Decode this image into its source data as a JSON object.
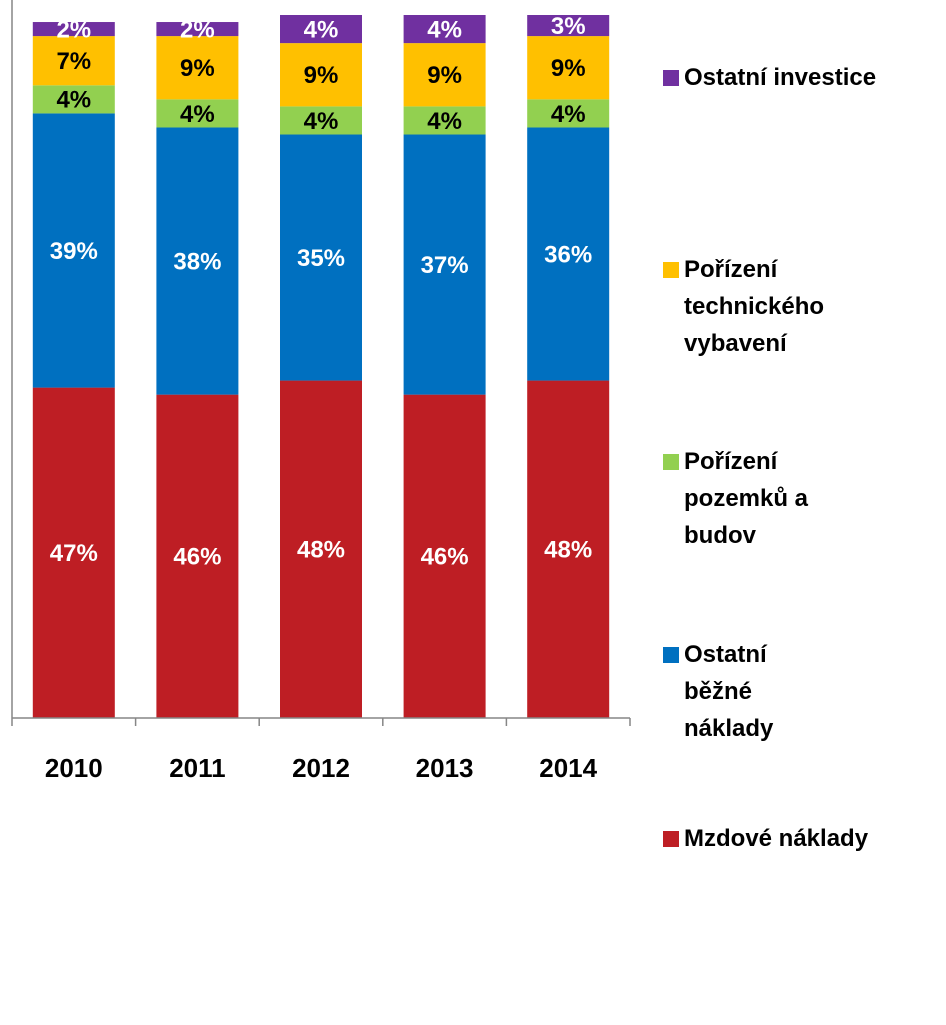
{
  "chart_data": {
    "type": "bar",
    "stacked": true,
    "categories": [
      "2010",
      "2011",
      "2012",
      "2013",
      "2014"
    ],
    "series": [
      {
        "name": "Mzdové náklady",
        "color": "#be1e24",
        "values": [
          47,
          46,
          48,
          46,
          48
        ],
        "value_labels": [
          "47%",
          "46%",
          "48%",
          "46%",
          "48%"
        ]
      },
      {
        "name": "Ostatní běžné náklady",
        "color": "#0070c0",
        "values": [
          39,
          38,
          35,
          37,
          36
        ],
        "value_labels": [
          "39%",
          "38%",
          "35%",
          "37%",
          "36%"
        ]
      },
      {
        "name": "Pořízení pozemků a budov",
        "color": "#92d050",
        "values": [
          4,
          4,
          4,
          4,
          4
        ],
        "value_labels": [
          "4%",
          "4%",
          "4%",
          "4%",
          "4%"
        ]
      },
      {
        "name": "Pořízení technického vybavení",
        "color": "#ffc000",
        "values": [
          7,
          9,
          9,
          9,
          9
        ],
        "value_labels": [
          "7%",
          "9%",
          "9%",
          "9%",
          "9%"
        ]
      },
      {
        "name": "Ostatní investice",
        "color": "#7030a0",
        "values": [
          2,
          2,
          4,
          4,
          3
        ],
        "value_labels": [
          "2%",
          "2%",
          "4%",
          "4%",
          "3%"
        ]
      }
    ],
    "ylim": [
      0,
      100
    ],
    "legend": "right"
  }
}
